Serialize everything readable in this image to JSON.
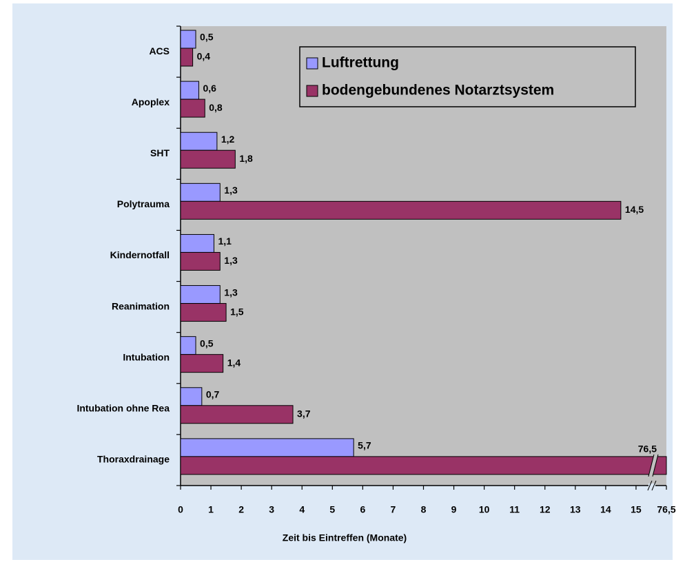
{
  "chart_data": {
    "type": "hbar",
    "xlabel": "Zeit bis Eintreffen (Monate)",
    "categories": [
      "ACS",
      "Apoplex",
      "SHT",
      "Polytrauma",
      "Kindernotfall",
      "Reanimation",
      "Intubation",
      "Intubation ohne Rea",
      "Thoraxdrainage"
    ],
    "series": [
      {
        "name": "Luftrettung",
        "color": "#9999ff",
        "values": [
          0.5,
          0.6,
          1.2,
          1.3,
          1.1,
          1.3,
          0.5,
          0.7,
          5.7
        ],
        "value_labels": [
          "0,5",
          "0,6",
          "1,2",
          "1,3",
          "1,1",
          "1,3",
          "0,5",
          "0,7",
          "5,7"
        ]
      },
      {
        "name": "bodengebundenes Notarztsystem",
        "color": "#993366",
        "values": [
          0.4,
          0.8,
          1.8,
          14.5,
          1.3,
          1.5,
          1.4,
          3.7,
          76.5
        ],
        "value_labels": [
          "0,4",
          "0,8",
          "1,8",
          "14,5",
          "1,3",
          "1,5",
          "1,4",
          "3,7",
          "76,5"
        ]
      }
    ],
    "xlim": [
      0,
      76.5
    ],
    "xbreak": [
      15.5,
      76
    ],
    "xticks": [
      0,
      1,
      2,
      3,
      4,
      5,
      6,
      7,
      8,
      9,
      10,
      11,
      12,
      13,
      14,
      15,
      {
        "value": 76.5,
        "label": "76,5"
      }
    ],
    "legend_position": "upper right",
    "grid": false
  }
}
